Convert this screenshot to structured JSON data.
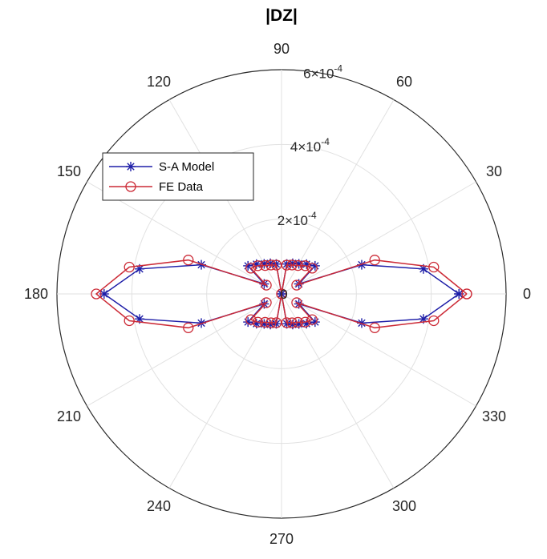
{
  "chart_data": {
    "type": "polar-line",
    "title": "|DZ|",
    "theta_unit": "degrees",
    "theta_ticks": [
      0,
      30,
      60,
      90,
      120,
      150,
      180,
      210,
      240,
      270,
      300,
      330
    ],
    "theta_tick_labels": [
      "0",
      "30",
      "60",
      "90",
      "120",
      "150",
      "180",
      "210",
      "240",
      "270",
      "300",
      "330"
    ],
    "r_lim": [
      0,
      0.0006
    ],
    "r_ticks": [
      0,
      0.0002,
      0.0004,
      0.0006
    ],
    "r_tick_labels": [
      {
        "mantissa": "0",
        "exponent": ""
      },
      {
        "mantissa": "2×10",
        "exponent": "-4"
      },
      {
        "mantissa": "4×10",
        "exponent": "-4"
      },
      {
        "mantissa": "6×10",
        "exponent": "-4"
      }
    ],
    "r_label_angle": 80,
    "grid": true,
    "legend_position": "upper-left",
    "series": [
      {
        "name": "S-A Model",
        "color": "#1f1fa8",
        "marker": "asterisk",
        "theta": [
          0,
          10,
          20,
          30,
          40,
          50,
          60,
          70,
          80,
          90,
          100,
          110,
          120,
          130,
          140,
          150,
          160,
          170,
          180,
          190,
          200,
          210,
          220,
          230,
          240,
          250,
          260,
          270,
          280,
          290,
          300,
          310,
          320,
          330,
          340,
          350,
          360
        ],
        "r": [
          0.000474,
          0.000385,
          0.000228,
          5.35e-05,
          0.000117,
          0.000104,
          9.28e-05,
          8.72e-05,
          8.12e-05,
          1.4e-07,
          8.12e-05,
          8.72e-05,
          9.28e-05,
          0.000104,
          0.000117,
          5.35e-05,
          0.000228,
          0.000385,
          0.000474,
          0.000385,
          0.000228,
          5.35e-05,
          0.000117,
          0.000104,
          9.28e-05,
          8.72e-05,
          8.12e-05,
          1.4e-07,
          8.12e-05,
          8.72e-05,
          9.28e-05,
          0.000104,
          0.000117,
          5.35e-05,
          0.000228,
          0.000385,
          0.000474
        ]
      },
      {
        "name": "FE Data",
        "color": "#cc2a36",
        "marker": "circle",
        "theta": [
          0,
          10,
          20,
          30,
          40,
          50,
          60,
          70,
          80,
          90,
          100,
          110,
          120,
          130,
          140,
          150,
          160,
          170,
          180,
          190,
          200,
          210,
          220,
          230,
          240,
          250,
          260,
          270,
          280,
          290,
          300,
          310,
          320,
          330,
          340,
          350,
          360
        ],
        "r": [
          0.000495,
          0.000413,
          0.000265,
          4.68e-05,
          0.000107,
          9.85e-05,
          8.77e-05,
          8.22e-05,
          7.82e-05,
          2.1e-07,
          7.82e-05,
          8.22e-05,
          8.77e-05,
          9.85e-05,
          0.000107,
          4.68e-05,
          0.000265,
          0.000413,
          0.000495,
          0.000413,
          0.000265,
          4.68e-05,
          0.000107,
          9.85e-05,
          8.77e-05,
          8.22e-05,
          7.82e-05,
          2.1e-07,
          7.82e-05,
          8.22e-05,
          8.77e-05,
          9.85e-05,
          0.000107,
          4.68e-05,
          0.000265,
          0.000413,
          0.000495
        ]
      }
    ]
  }
}
